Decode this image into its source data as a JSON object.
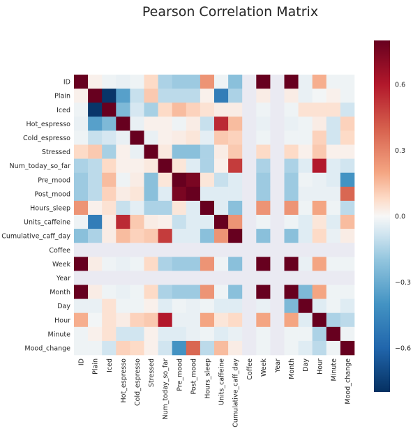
{
  "chart_data": {
    "type": "heatmap",
    "title": "Pearson Correlation Matrix",
    "variables": [
      "ID",
      "Plain",
      "Iced",
      "Hot_espresso",
      "Cold_espresso",
      "Stressed",
      "Num_today_so_far",
      "Pre_mood",
      "Post_mood",
      "Hours_sleep",
      "Units_caffeine",
      "Cumulative_caff_day",
      "Coffee",
      "Week",
      "Year",
      "Month",
      "Day",
      "Hour",
      "Minute",
      "Mood_change"
    ],
    "matrix": [
      [
        1.0,
        0.02,
        -0.02,
        -0.03,
        -0.02,
        0.08,
        -0.15,
        -0.18,
        -0.18,
        0.25,
        -0.02,
        -0.22,
        null,
        1.0,
        null,
        1.0,
        -0.03,
        0.18,
        -0.02,
        -0.02
      ],
      [
        0.02,
        1.0,
        -0.78,
        -0.35,
        -0.1,
        0.12,
        -0.12,
        -0.12,
        -0.12,
        0.02,
        -0.5,
        -0.15,
        null,
        0.03,
        null,
        0.03,
        -0.03,
        -0.01,
        0.02,
        -0.02
      ],
      [
        -0.02,
        -0.78,
        1.0,
        -0.25,
        -0.07,
        -0.16,
        0.08,
        0.15,
        0.1,
        0.06,
        0.03,
        0.03,
        null,
        -0.02,
        null,
        -0.02,
        0.06,
        0.06,
        0.06,
        -0.08
      ],
      [
        -0.03,
        -0.35,
        -0.25,
        1.0,
        -0.03,
        0.02,
        0.02,
        -0.02,
        0.03,
        -0.1,
        0.55,
        0.15,
        null,
        -0.03,
        null,
        -0.03,
        -0.02,
        0.03,
        -0.08,
        0.1
      ],
      [
        -0.02,
        -0.1,
        -0.07,
        -0.03,
        1.0,
        -0.03,
        0.02,
        0.03,
        0.05,
        -0.04,
        0.12,
        0.1,
        null,
        -0.02,
        null,
        -0.02,
        -0.02,
        0.1,
        -0.08,
        0.08
      ],
      [
        0.08,
        0.12,
        -0.16,
        0.02,
        -0.03,
        1.0,
        0.04,
        -0.22,
        -0.22,
        -0.15,
        0.03,
        0.12,
        null,
        0.08,
        null,
        0.08,
        0.02,
        0.12,
        0.02,
        0.02
      ],
      [
        -0.15,
        -0.12,
        0.08,
        0.02,
        0.02,
        0.04,
        1.0,
        0.05,
        -0.05,
        -0.15,
        0.02,
        0.5,
        null,
        -0.15,
        null,
        -0.15,
        -0.05,
        0.6,
        -0.05,
        -0.08
      ],
      [
        -0.18,
        -0.12,
        0.15,
        -0.02,
        0.03,
        -0.22,
        0.05,
        1.0,
        0.75,
        0.05,
        -0.1,
        -0.05,
        null,
        -0.18,
        null,
        -0.18,
        -0.02,
        -0.03,
        -0.05,
        -0.4
      ],
      [
        -0.18,
        -0.12,
        0.1,
        0.03,
        0.05,
        -0.22,
        -0.05,
        0.75,
        1.0,
        -0.05,
        -0.05,
        -0.05,
        null,
        -0.18,
        null,
        -0.18,
        -0.03,
        -0.03,
        -0.03,
        0.38
      ],
      [
        0.25,
        0.02,
        0.06,
        -0.1,
        -0.04,
        -0.15,
        -0.15,
        0.05,
        -0.05,
        1.0,
        -0.05,
        -0.22,
        null,
        0.25,
        null,
        0.25,
        -0.02,
        0.2,
        -0.02,
        -0.12
      ],
      [
        -0.02,
        -0.5,
        0.03,
        0.55,
        0.12,
        0.03,
        0.02,
        -0.1,
        -0.05,
        -0.05,
        1.0,
        0.25,
        null,
        -0.02,
        null,
        -0.02,
        -0.05,
        0.05,
        -0.05,
        0.15
      ],
      [
        -0.22,
        -0.15,
        0.03,
        0.15,
        0.1,
        0.12,
        0.5,
        -0.05,
        -0.05,
        -0.22,
        0.25,
        1.0,
        null,
        -0.22,
        null,
        -0.22,
        -0.05,
        0.08,
        -0.03,
        0.03
      ],
      [
        null,
        null,
        null,
        null,
        null,
        null,
        null,
        null,
        null,
        null,
        null,
        null,
        null,
        null,
        null,
        null,
        null,
        null,
        null,
        null
      ],
      [
        1.0,
        0.03,
        -0.02,
        -0.03,
        -0.02,
        0.08,
        -0.15,
        -0.18,
        -0.18,
        0.25,
        -0.02,
        -0.22,
        null,
        1.0,
        null,
        1.0,
        -0.03,
        0.2,
        -0.02,
        -0.02
      ],
      [
        null,
        null,
        null,
        null,
        null,
        null,
        null,
        null,
        null,
        null,
        null,
        null,
        null,
        null,
        null,
        null,
        null,
        null,
        null,
        null
      ],
      [
        1.0,
        0.03,
        -0.02,
        -0.03,
        -0.02,
        0.08,
        -0.15,
        -0.18,
        -0.18,
        0.25,
        -0.02,
        -0.22,
        null,
        1.0,
        null,
        1.0,
        -0.25,
        0.2,
        -0.02,
        -0.02
      ],
      [
        -0.03,
        -0.03,
        0.06,
        -0.02,
        -0.02,
        0.02,
        -0.05,
        -0.02,
        -0.03,
        -0.02,
        -0.05,
        -0.05,
        null,
        -0.03,
        null,
        -0.25,
        1.0,
        -0.05,
        -0.02,
        -0.05
      ],
      [
        0.18,
        -0.01,
        0.06,
        0.03,
        0.1,
        0.12,
        0.6,
        -0.03,
        -0.03,
        0.2,
        0.05,
        0.08,
        null,
        0.2,
        null,
        0.2,
        -0.05,
        1.0,
        -0.15,
        -0.12
      ],
      [
        -0.02,
        0.02,
        0.06,
        -0.08,
        -0.08,
        0.02,
        -0.05,
        -0.05,
        -0.03,
        -0.02,
        -0.05,
        -0.03,
        null,
        -0.02,
        null,
        -0.02,
        -0.02,
        -0.15,
        1.0,
        -0.02
      ],
      [
        -0.02,
        -0.02,
        -0.08,
        0.1,
        0.08,
        0.02,
        -0.08,
        -0.4,
        0.38,
        -0.12,
        0.15,
        0.03,
        null,
        -0.02,
        null,
        -0.02,
        -0.05,
        -0.12,
        -0.02,
        1.0
      ]
    ],
    "vmin": -0.8,
    "vmax": 0.8,
    "nan_color": "#eaeaf2",
    "colormap": "RdBu_r",
    "colorbar_ticks": [
      0.6,
      0.3,
      0.0,
      -0.3,
      -0.6
    ],
    "colorbar_tick_labels": [
      "0.6",
      "0.3",
      "0.0",
      "−0.3",
      "−0.6"
    ]
  }
}
